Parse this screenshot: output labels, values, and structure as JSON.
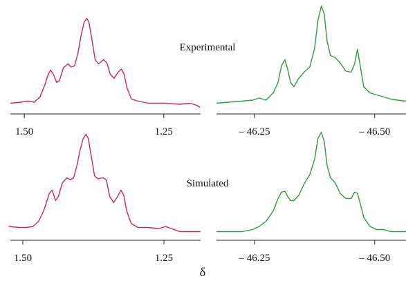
{
  "chart_data": [
    {
      "type": "line",
      "annotation": "Experimental",
      "color": "#c8246e",
      "xlim": [
        1.525,
        1.184
      ],
      "ylim": [
        0,
        1.1
      ],
      "xticks": [
        {
          "value": 1.5,
          "label": "1.50"
        },
        1.25
      ],
      "x": [
        1.525,
        1.506,
        1.494,
        1.482,
        1.472,
        1.463,
        1.457,
        1.453,
        1.448,
        1.442,
        1.437,
        1.43,
        1.422,
        1.416,
        1.41,
        1.404,
        1.398,
        1.393,
        1.388,
        1.384,
        1.379,
        1.373,
        1.367,
        1.358,
        1.352,
        1.346,
        1.339,
        1.332,
        1.326,
        1.321,
        1.316,
        1.308,
        1.296,
        1.278,
        1.259,
        1.247,
        1.222,
        1.203,
        1.191,
        1.185
      ],
      "values": [
        0.07,
        0.08,
        0.09,
        0.08,
        0.13,
        0.25,
        0.35,
        0.39,
        0.35,
        0.27,
        0.29,
        0.41,
        0.45,
        0.42,
        0.43,
        0.55,
        0.73,
        0.85,
        0.89,
        0.85,
        0.69,
        0.49,
        0.45,
        0.49,
        0.46,
        0.35,
        0.31,
        0.37,
        0.4,
        0.35,
        0.22,
        0.11,
        0.09,
        0.07,
        0.07,
        0.07,
        0.06,
        0.07,
        0.05,
        0.03
      ]
    },
    {
      "type": "line",
      "color": "#2e9a3e",
      "xlim": [
        -46.171,
        -46.565
      ],
      "ylim": [
        0,
        1.1
      ],
      "xticks": [
        {
          "value": -46.25,
          "label": "– 46.25"
        },
        {
          "value": -46.5,
          "label": "– 46.50"
        }
      ],
      "x": [
        -46.171,
        -46.195,
        -46.224,
        -46.246,
        -46.26,
        -46.274,
        -46.289,
        -46.299,
        -46.306,
        -46.313,
        -46.319,
        -46.325,
        -46.332,
        -46.342,
        -46.353,
        -46.365,
        -46.375,
        -46.382,
        -46.389,
        -46.395,
        -46.401,
        -46.408,
        -46.418,
        -46.428,
        -46.44,
        -46.451,
        -46.458,
        -46.464,
        -46.47,
        -46.477,
        -46.49,
        -46.504,
        -46.519,
        -46.533,
        -46.547,
        -46.565
      ],
      "values": [
        0.07,
        0.08,
        0.09,
        0.1,
        0.12,
        0.1,
        0.17,
        0.27,
        0.43,
        0.49,
        0.4,
        0.27,
        0.23,
        0.31,
        0.37,
        0.42,
        0.6,
        0.87,
        1.01,
        0.93,
        0.67,
        0.53,
        0.51,
        0.46,
        0.38,
        0.37,
        0.45,
        0.59,
        0.43,
        0.23,
        0.17,
        0.15,
        0.13,
        0.11,
        0.1,
        0.09
      ]
    },
    {
      "type": "line",
      "annotation": "Simulated",
      "color": "#c8246e",
      "xlim": [
        1.522,
        1.185
      ],
      "ylim": [
        0,
        1.1
      ],
      "xticks": [
        {
          "value": 1.5,
          "label": "1.50"
        },
        1.25
      ],
      "x": [
        1.525,
        1.506,
        1.494,
        1.482,
        1.472,
        1.463,
        1.457,
        1.453,
        1.448,
        1.442,
        1.437,
        1.43,
        1.422,
        1.416,
        1.41,
        1.404,
        1.398,
        1.393,
        1.388,
        1.384,
        1.379,
        1.373,
        1.367,
        1.358,
        1.352,
        1.346,
        1.339,
        1.332,
        1.326,
        1.321,
        1.316,
        1.308,
        1.296,
        1.278,
        1.259,
        1.247,
        1.222,
        1.203,
        1.191,
        1.185
      ],
      "values": [
        0.1,
        0.09,
        0.09,
        0.1,
        0.15,
        0.25,
        0.35,
        0.42,
        0.45,
        0.35,
        0.39,
        0.52,
        0.57,
        0.55,
        0.57,
        0.69,
        0.85,
        0.95,
        0.99,
        0.95,
        0.79,
        0.59,
        0.56,
        0.57,
        0.55,
        0.39,
        0.33,
        0.39,
        0.45,
        0.4,
        0.25,
        0.13,
        0.09,
        0.09,
        0.08,
        0.1,
        0.05,
        0.05,
        0.05,
        0.05
      ]
    },
    {
      "type": "line",
      "color": "#2e9a3e",
      "xlim": [
        -46.171,
        -46.565
      ],
      "ylim": [
        0,
        1.1
      ],
      "xticks": [
        {
          "value": -46.25,
          "label": "– 46.25"
        },
        {
          "value": -46.5,
          "label": "– 46.50"
        }
      ],
      "x": [
        -46.171,
        -46.195,
        -46.224,
        -46.246,
        -46.26,
        -46.274,
        -46.289,
        -46.299,
        -46.306,
        -46.313,
        -46.319,
        -46.325,
        -46.332,
        -46.342,
        -46.353,
        -46.365,
        -46.375,
        -46.382,
        -46.389,
        -46.395,
        -46.401,
        -46.408,
        -46.418,
        -46.428,
        -46.44,
        -46.451,
        -46.458,
        -46.464,
        -46.47,
        -46.477,
        -46.49,
        -46.504,
        -46.519,
        -46.533,
        -46.547,
        -46.565
      ],
      "values": [
        0.05,
        0.05,
        0.05,
        0.07,
        0.1,
        0.15,
        0.25,
        0.37,
        0.43,
        0.44,
        0.39,
        0.35,
        0.35,
        0.4,
        0.51,
        0.6,
        0.75,
        0.95,
        1.01,
        0.92,
        0.69,
        0.57,
        0.52,
        0.42,
        0.37,
        0.37,
        0.43,
        0.42,
        0.32,
        0.19,
        0.1,
        0.07,
        0.07,
        0.05,
        0.05,
        0.05
      ]
    }
  ],
  "figure": {
    "xlabel": "δ"
  }
}
